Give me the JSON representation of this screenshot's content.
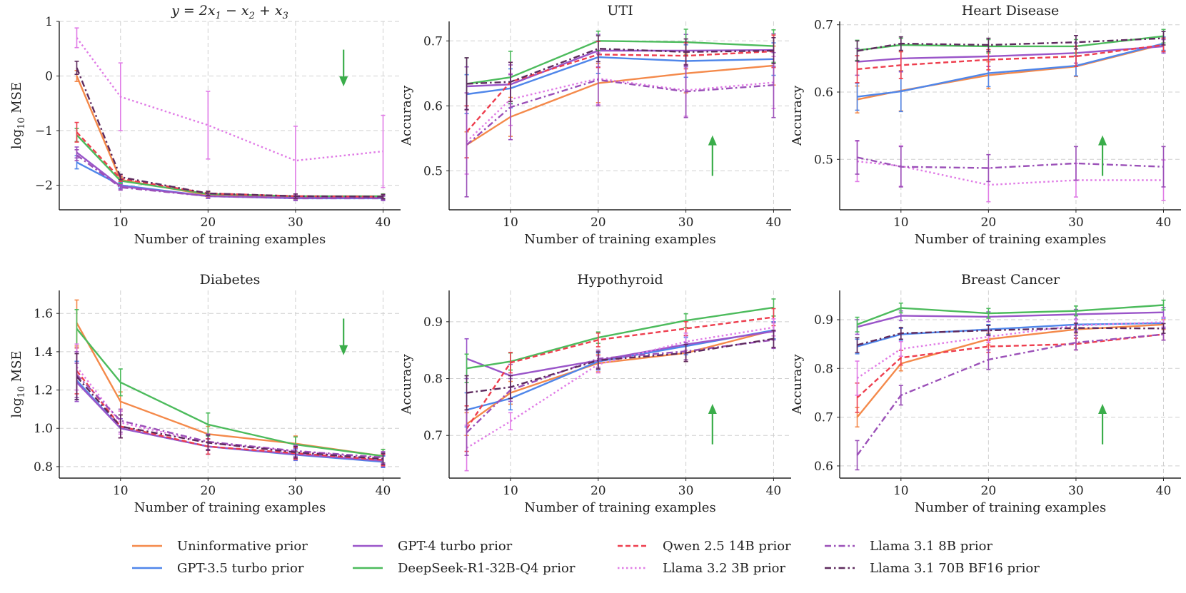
{
  "legend": [
    {
      "label": "Uninformative prior",
      "color": "#f4894a",
      "dash": "solid"
    },
    {
      "label": "GPT-3.5 turbo prior",
      "color": "#4f86ea",
      "dash": "solid"
    },
    {
      "label": "GPT-4 turbo prior",
      "color": "#9a55c9",
      "dash": "solid"
    },
    {
      "label": "DeepSeek-R1-32B-Q4 prior",
      "color": "#4cbb5c",
      "dash": "solid"
    },
    {
      "label": "Qwen 2.5 14B prior",
      "color": "#ee3e4e",
      "dash": "dashed"
    },
    {
      "label": "Llama 3.2 3B prior",
      "color": "#e07be6",
      "dash": "dotted"
    },
    {
      "label": "Llama 3.1 8B prior",
      "color": "#9b50b8",
      "dash": "dashdot"
    },
    {
      "label": "Llama 3.1 70B BF16 prior",
      "color": "#5e2a5e",
      "dash": "dashdot"
    }
  ],
  "chart_data": [
    {
      "type": "line",
      "title_parts": [
        "y = 2x",
        "1",
        " − x",
        "2",
        " + x",
        "3"
      ],
      "xlabel": "Number of training examples",
      "ylabel": "log",
      "ylabel_sub": "10",
      "ylabel_rest": " MSE",
      "x": [
        5,
        10,
        20,
        30,
        40
      ],
      "xlim": [
        3,
        42
      ],
      "ylim": [
        -2.45,
        1.0
      ],
      "xticks": [
        10,
        20,
        30,
        40
      ],
      "yticks": [
        1,
        0,
        -1,
        -2
      ],
      "ytick_labels": [
        "1",
        "0",
        "−1",
        "−2"
      ],
      "arrow": "down",
      "series": [
        {
          "values": [
            0.0,
            -1.9,
            -2.18,
            -2.22,
            -2.22
          ],
          "err": [
            0.1,
            0.05,
            0.04,
            0.04,
            0.04
          ]
        },
        {
          "values": [
            -1.58,
            -2.0,
            -2.2,
            -2.24,
            -2.24
          ],
          "err": [
            0.12,
            0.05,
            0.04,
            0.04,
            0.04
          ]
        },
        {
          "values": [
            -1.4,
            -2.02,
            -2.2,
            -2.23,
            -2.23
          ],
          "err": [
            0.1,
            0.05,
            0.04,
            0.04,
            0.04
          ]
        },
        {
          "values": [
            -1.08,
            -1.92,
            -2.16,
            -2.2,
            -2.2
          ],
          "err": [
            0.12,
            0.05,
            0.04,
            0.04,
            0.04
          ]
        },
        {
          "values": [
            -1.03,
            -1.88,
            -2.15,
            -2.2,
            -2.21
          ],
          "err": [
            0.18,
            0.05,
            0.04,
            0.04,
            0.04
          ]
        },
        {
          "values": [
            0.7,
            -0.38,
            -0.9,
            -1.55,
            -1.38
          ],
          "err": [
            0.18,
            0.62,
            0.62,
            0.63,
            0.66
          ]
        },
        {
          "values": [
            -1.45,
            -2.04,
            -2.2,
            -2.24,
            -2.24
          ],
          "err": [
            0.1,
            0.05,
            0.04,
            0.04,
            0.04
          ]
        },
        {
          "values": [
            0.15,
            -1.85,
            -2.15,
            -2.2,
            -2.21
          ],
          "err": [
            0.12,
            0.05,
            0.04,
            0.04,
            0.04
          ]
        }
      ]
    },
    {
      "type": "line",
      "title": "UTI",
      "xlabel": "Number of training examples",
      "ylabel": "Accuracy",
      "x": [
        5,
        10,
        20,
        30,
        40
      ],
      "xlim": [
        3,
        42
      ],
      "ylim": [
        0.44,
        0.73
      ],
      "xticks": [
        10,
        20,
        30,
        40
      ],
      "yticks": [
        0.5,
        0.6,
        0.7
      ],
      "ytick_labels": [
        "0.5",
        "0.6",
        "0.7"
      ],
      "arrow": "up",
      "series": [
        {
          "values": [
            0.54,
            0.583,
            0.635,
            0.65,
            0.662
          ],
          "err": [
            0.02,
            0.03,
            0.03,
            0.03,
            0.03
          ]
        },
        {
          "values": [
            0.618,
            0.627,
            0.675,
            0.669,
            0.672
          ],
          "err": [
            0.03,
            0.03,
            0.025,
            0.025,
            0.025
          ]
        },
        {
          "values": [
            0.63,
            0.633,
            0.685,
            0.685,
            0.686
          ],
          "err": [
            0.03,
            0.03,
            0.025,
            0.025,
            0.025
          ]
        },
        {
          "values": [
            0.634,
            0.644,
            0.7,
            0.698,
            0.692
          ],
          "err": [
            0.04,
            0.04,
            0.015,
            0.02,
            0.025
          ]
        },
        {
          "values": [
            0.56,
            0.637,
            0.679,
            0.677,
            0.684
          ],
          "err": [
            0.04,
            0.03,
            0.02,
            0.02,
            0.025
          ]
        },
        {
          "values": [
            0.545,
            0.61,
            0.642,
            0.624,
            0.636
          ],
          "err": [
            0.05,
            0.04,
            0.04,
            0.04,
            0.04
          ]
        },
        {
          "values": [
            0.54,
            0.598,
            0.64,
            0.622,
            0.632
          ],
          "err": [
            0.08,
            0.05,
            0.04,
            0.04,
            0.05
          ]
        },
        {
          "values": [
            0.634,
            0.637,
            0.688,
            0.683,
            0.685
          ],
          "err": [
            0.04,
            0.03,
            0.02,
            0.02,
            0.02
          ]
        }
      ]
    },
    {
      "type": "line",
      "title": "Heart Disease",
      "xlabel": "Number of training examples",
      "ylabel": "Accuracy",
      "x": [
        5,
        10,
        20,
        30,
        40
      ],
      "xlim": [
        3,
        42
      ],
      "ylim": [
        0.425,
        0.705
      ],
      "xticks": [
        10,
        20,
        30,
        40
      ],
      "yticks": [
        0.5,
        0.6,
        0.7
      ],
      "ytick_labels": [
        "0.5",
        "0.6",
        "0.7"
      ],
      "arrow": "up",
      "series": [
        {
          "values": [
            0.589,
            0.602,
            0.625,
            0.638,
            0.671
          ],
          "err": [
            0.02,
            0.03,
            0.02,
            0.015,
            0.01
          ]
        },
        {
          "values": [
            0.593,
            0.601,
            0.628,
            0.639,
            0.672
          ],
          "err": [
            0.02,
            0.03,
            0.02,
            0.015,
            0.01
          ]
        },
        {
          "values": [
            0.645,
            0.65,
            0.653,
            0.658,
            0.668
          ],
          "err": [
            0.02,
            0.02,
            0.015,
            0.015,
            0.01
          ]
        },
        {
          "values": [
            0.662,
            0.67,
            0.668,
            0.668,
            0.683
          ],
          "err": [
            0.015,
            0.01,
            0.01,
            0.01,
            0.01
          ]
        },
        {
          "values": [
            0.634,
            0.64,
            0.648,
            0.653,
            0.67
          ],
          "err": [
            0.02,
            0.02,
            0.015,
            0.015,
            0.01
          ]
        },
        {
          "values": [
            0.497,
            0.49,
            0.462,
            0.469,
            0.469
          ],
          "err": [
            0.03,
            0.03,
            0.025,
            0.025,
            0.03
          ]
        },
        {
          "values": [
            0.503,
            0.489,
            0.487,
            0.494,
            0.489
          ],
          "err": [
            0.025,
            0.03,
            0.02,
            0.025,
            0.03
          ]
        },
        {
          "values": [
            0.661,
            0.672,
            0.67,
            0.674,
            0.68
          ],
          "err": [
            0.015,
            0.01,
            0.01,
            0.01,
            0.01
          ]
        }
      ]
    },
    {
      "type": "line",
      "title": "Diabetes",
      "xlabel": "Number of training examples",
      "ylabel": "log",
      "ylabel_sub": "10",
      "ylabel_rest": " MSE",
      "x": [
        5,
        10,
        20,
        30,
        40
      ],
      "xlim": [
        3,
        42
      ],
      "ylim": [
        0.74,
        1.72
      ],
      "xticks": [
        10,
        20,
        30,
        40
      ],
      "yticks": [
        0.8,
        1.0,
        1.2,
        1.4,
        1.6
      ],
      "ytick_labels": [
        "0.8",
        "1.0",
        "1.2",
        "1.4",
        "1.6"
      ],
      "arrow": "down",
      "series": [
        {
          "values": [
            1.55,
            1.14,
            0.97,
            0.92,
            0.855
          ],
          "err": [
            0.12,
            0.05,
            0.04,
            0.04,
            0.035
          ]
        },
        {
          "values": [
            1.25,
            1.0,
            0.905,
            0.862,
            0.825
          ],
          "err": [
            0.1,
            0.05,
            0.04,
            0.03,
            0.03
          ]
        },
        {
          "values": [
            1.24,
            1.0,
            0.905,
            0.865,
            0.83
          ],
          "err": [
            0.1,
            0.05,
            0.04,
            0.03,
            0.03
          ]
        },
        {
          "values": [
            1.52,
            1.24,
            1.02,
            0.915,
            0.855
          ],
          "err": [
            0.1,
            0.07,
            0.06,
            0.04,
            0.035
          ]
        },
        {
          "values": [
            1.3,
            1.01,
            0.905,
            0.87,
            0.835
          ],
          "err": [
            0.12,
            0.06,
            0.04,
            0.03,
            0.03
          ]
        },
        {
          "values": [
            1.32,
            1.03,
            0.925,
            0.88,
            0.845
          ],
          "err": [
            0.12,
            0.06,
            0.04,
            0.03,
            0.03
          ]
        },
        {
          "values": [
            1.28,
            1.04,
            0.93,
            0.882,
            0.848
          ],
          "err": [
            0.12,
            0.06,
            0.04,
            0.03,
            0.03
          ]
        },
        {
          "values": [
            1.27,
            1.01,
            0.925,
            0.875,
            0.84
          ],
          "err": [
            0.12,
            0.06,
            0.04,
            0.03,
            0.03
          ]
        }
      ]
    },
    {
      "type": "line",
      "title": "Hypothyroid",
      "xlabel": "Number of training examples",
      "ylabel": "Accuracy",
      "x": [
        5,
        10,
        20,
        30,
        40
      ],
      "xlim": [
        3,
        42
      ],
      "ylim": [
        0.625,
        0.955
      ],
      "xticks": [
        10,
        20,
        30,
        40
      ],
      "yticks": [
        0.7,
        0.8,
        0.9
      ],
      "ytick_labels": [
        "0.7",
        "0.8",
        "0.9"
      ],
      "arrow": "up",
      "series": [
        {
          "values": [
            0.72,
            0.775,
            0.827,
            0.845,
            0.885
          ],
          "err": [
            0.02,
            0.02,
            0.015,
            0.015,
            0.015
          ]
        },
        {
          "values": [
            0.745,
            0.765,
            0.83,
            0.857,
            0.885
          ],
          "err": [
            0.03,
            0.02,
            0.015,
            0.015,
            0.015
          ]
        },
        {
          "values": [
            0.835,
            0.805,
            0.832,
            0.86,
            0.883
          ],
          "err": [
            0.035,
            0.02,
            0.015,
            0.015,
            0.015
          ]
        },
        {
          "values": [
            0.818,
            0.83,
            0.872,
            0.902,
            0.925
          ],
          "err": [
            0.025,
            0.015,
            0.01,
            0.012,
            0.015
          ]
        },
        {
          "values": [
            0.712,
            0.828,
            0.868,
            0.888,
            0.908
          ],
          "err": [
            0.04,
            0.018,
            0.012,
            0.012,
            0.015
          ]
        },
        {
          "values": [
            0.678,
            0.725,
            0.825,
            0.865,
            0.89
          ],
          "err": [
            0.04,
            0.015,
            0.015,
            0.015,
            0.015
          ]
        },
        {
          "values": [
            0.705,
            0.78,
            0.835,
            0.848,
            0.868
          ],
          "err": [
            0.04,
            0.02,
            0.015,
            0.015,
            0.015
          ]
        },
        {
          "values": [
            0.775,
            0.785,
            0.832,
            0.845,
            0.87
          ],
          "err": [
            0.03,
            0.02,
            0.015,
            0.015,
            0.015
          ]
        }
      ]
    },
    {
      "type": "line",
      "title": "Breast Cancer",
      "xlabel": "Number of training examples",
      "ylabel": "Accuracy",
      "x": [
        5,
        10,
        20,
        30,
        40
      ],
      "xlim": [
        3,
        42
      ],
      "ylim": [
        0.575,
        0.96
      ],
      "xticks": [
        10,
        20,
        30,
        40
      ],
      "yticks": [
        0.6,
        0.7,
        0.8,
        0.9
      ],
      "ytick_labels": [
        "0.6",
        "0.7",
        "0.8",
        "0.9"
      ],
      "arrow": "up",
      "series": [
        {
          "values": [
            0.7,
            0.81,
            0.86,
            0.88,
            0.89
          ],
          "err": [
            0.02,
            0.015,
            0.012,
            0.012,
            0.01
          ]
        },
        {
          "values": [
            0.845,
            0.87,
            0.88,
            0.89,
            0.893
          ],
          "err": [
            0.015,
            0.012,
            0.01,
            0.01,
            0.01
          ]
        },
        {
          "values": [
            0.885,
            0.908,
            0.906,
            0.911,
            0.915
          ],
          "err": [
            0.015,
            0.01,
            0.01,
            0.01,
            0.01
          ]
        },
        {
          "values": [
            0.89,
            0.924,
            0.913,
            0.918,
            0.93
          ],
          "err": [
            0.015,
            0.01,
            0.01,
            0.01,
            0.01
          ]
        },
        {
          "values": [
            0.74,
            0.822,
            0.845,
            0.85,
            0.87
          ],
          "err": [
            0.03,
            0.015,
            0.012,
            0.012,
            0.012
          ]
        },
        {
          "values": [
            0.78,
            0.84,
            0.865,
            0.888,
            0.895
          ],
          "err": [
            0.035,
            0.015,
            0.012,
            0.012,
            0.01
          ]
        },
        {
          "values": [
            0.622,
            0.745,
            0.818,
            0.853,
            0.87
          ],
          "err": [
            0.03,
            0.02,
            0.02,
            0.015,
            0.012
          ]
        },
        {
          "values": [
            0.848,
            0.872,
            0.878,
            0.883,
            0.882
          ],
          "err": [
            0.015,
            0.012,
            0.01,
            0.01,
            0.01
          ]
        }
      ]
    }
  ]
}
